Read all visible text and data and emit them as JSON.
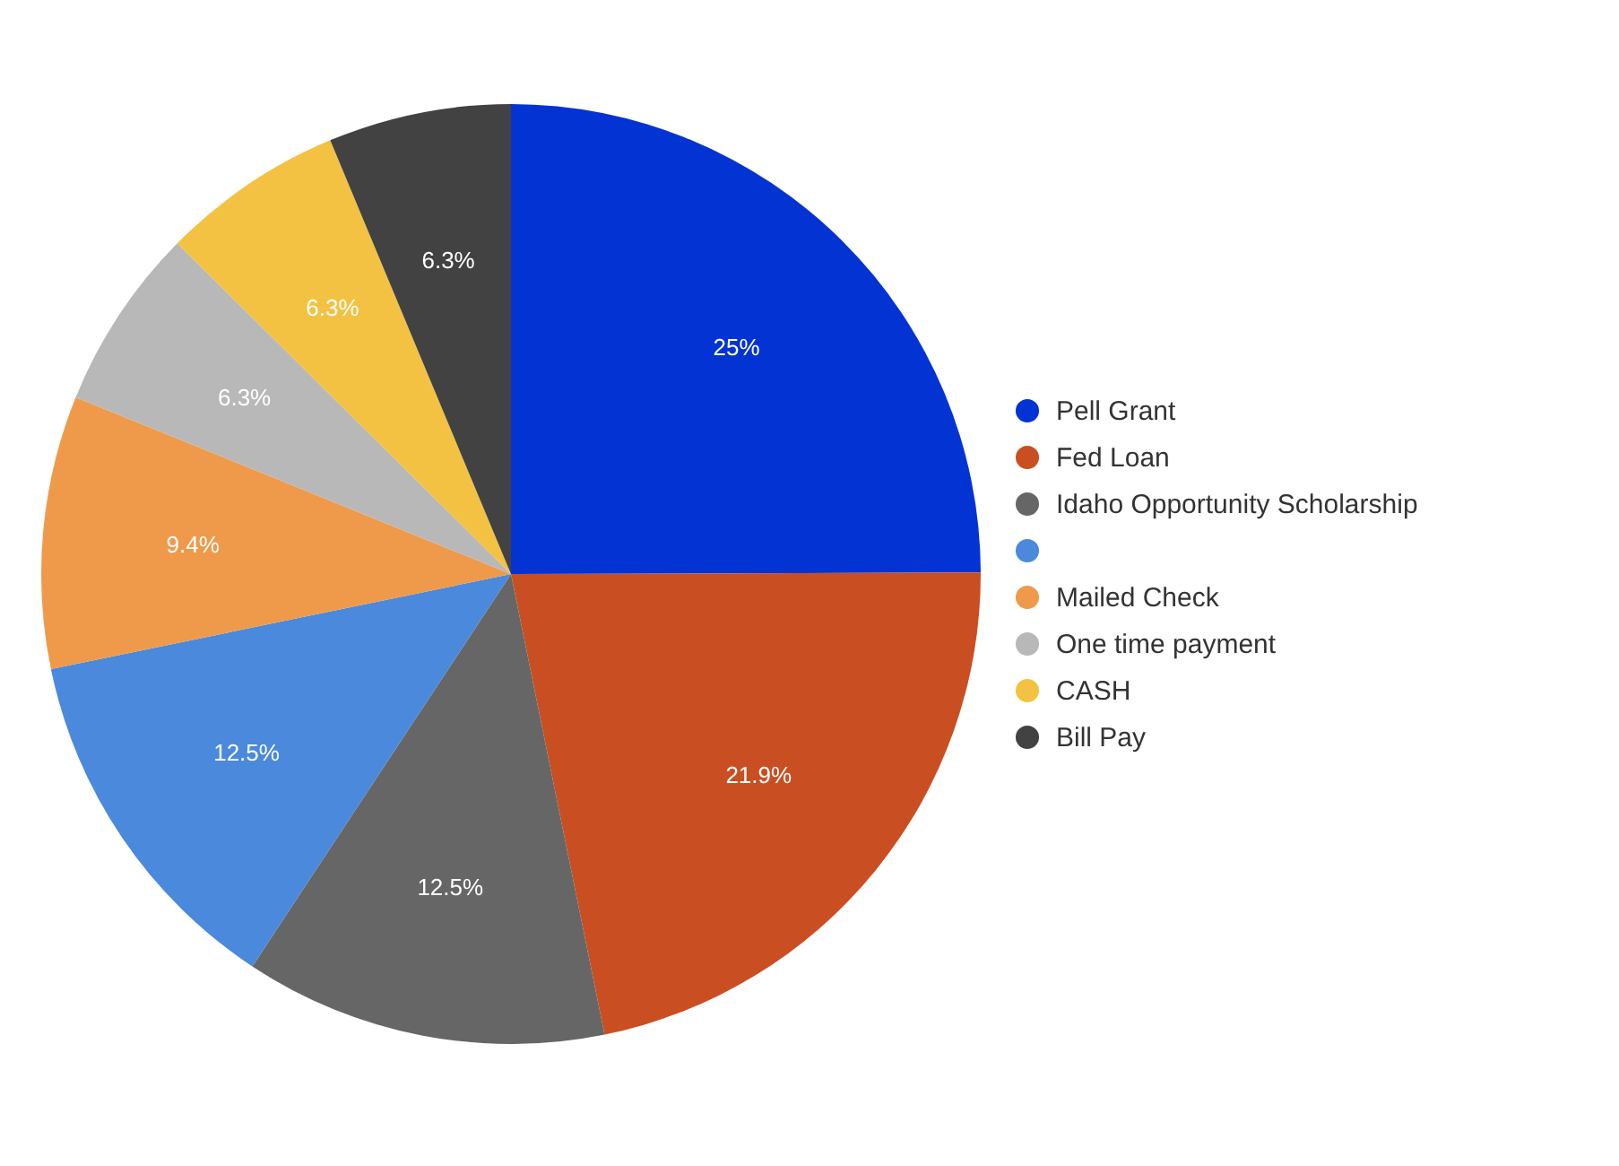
{
  "chart_data": {
    "type": "pie",
    "categories": [
      "Pell Grant",
      "Fed Loan",
      "Idaho Opportunity Scholarship",
      null,
      "Mailed Check",
      "One time payment",
      "CASH",
      "Bill Pay"
    ],
    "values": [
      25,
      21.9,
      12.5,
      12.5,
      9.4,
      6.3,
      6.3,
      6.3
    ],
    "colors": [
      "#0433d4",
      "#c94f22",
      "#666666",
      "#4a89dc",
      "#ef9a4a",
      "#b8b8b8",
      "#f4c242",
      "#424242"
    ],
    "value_labels": [
      "25%",
      "21.9%",
      "12.5%",
      "12.5%",
      "9.4%",
      "6.3%",
      "6.3%",
      "6.3%"
    ],
    "legend": "right"
  }
}
